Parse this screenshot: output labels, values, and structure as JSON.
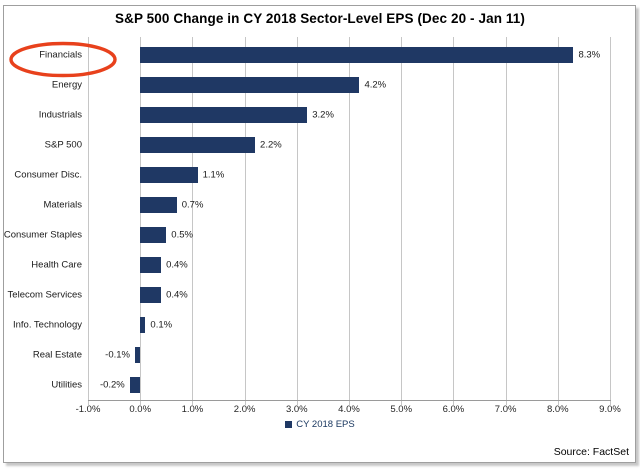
{
  "title": "S&P 500 Change in CY 2018 Sector-Level EPS (Dec 20 - Jan 11)",
  "source": "Source: FactSet",
  "chart_data": {
    "type": "bar",
    "orientation": "horizontal",
    "title": "S&P 500 Change in CY 2018 Sector-Level EPS (Dec 20 - Jan 11)",
    "categories": [
      "Financials",
      "Energy",
      "Industrials",
      "S&P 500",
      "Consumer Disc.",
      "Materials",
      "Consumer Staples",
      "Health Care",
      "Telecom Services",
      "Info. Technology",
      "Real Estate",
      "Utilities"
    ],
    "values": [
      8.3,
      4.2,
      3.2,
      2.2,
      1.1,
      0.7,
      0.5,
      0.4,
      0.4,
      0.1,
      -0.1,
      -0.2
    ],
    "value_labels": [
      "8.3%",
      "4.2%",
      "3.2%",
      "2.2%",
      "1.1%",
      "0.7%",
      "0.5%",
      "0.4%",
      "0.4%",
      "0.1%",
      "-0.1%",
      "-0.2%"
    ],
    "xlim": [
      -1,
      9
    ],
    "x_tick_values": [
      -1,
      0,
      1,
      2,
      3,
      4,
      5,
      6,
      7,
      8,
      9
    ],
    "x_tick_labels": [
      "-1.0%",
      "0.0%",
      "1.0%",
      "2.0%",
      "3.0%",
      "4.0%",
      "5.0%",
      "6.0%",
      "7.0%",
      "8.0%",
      "9.0%"
    ],
    "grid": true,
    "bar_color": "#1f3864",
    "gridline_color": "#c6c6c6",
    "legend": {
      "label": "CY 2018 EPS",
      "position": "bottom-center",
      "swatch_color": "#1f3864"
    },
    "annotation": {
      "type": "ellipse",
      "target": "Financials",
      "color": "#e8411c"
    }
  }
}
